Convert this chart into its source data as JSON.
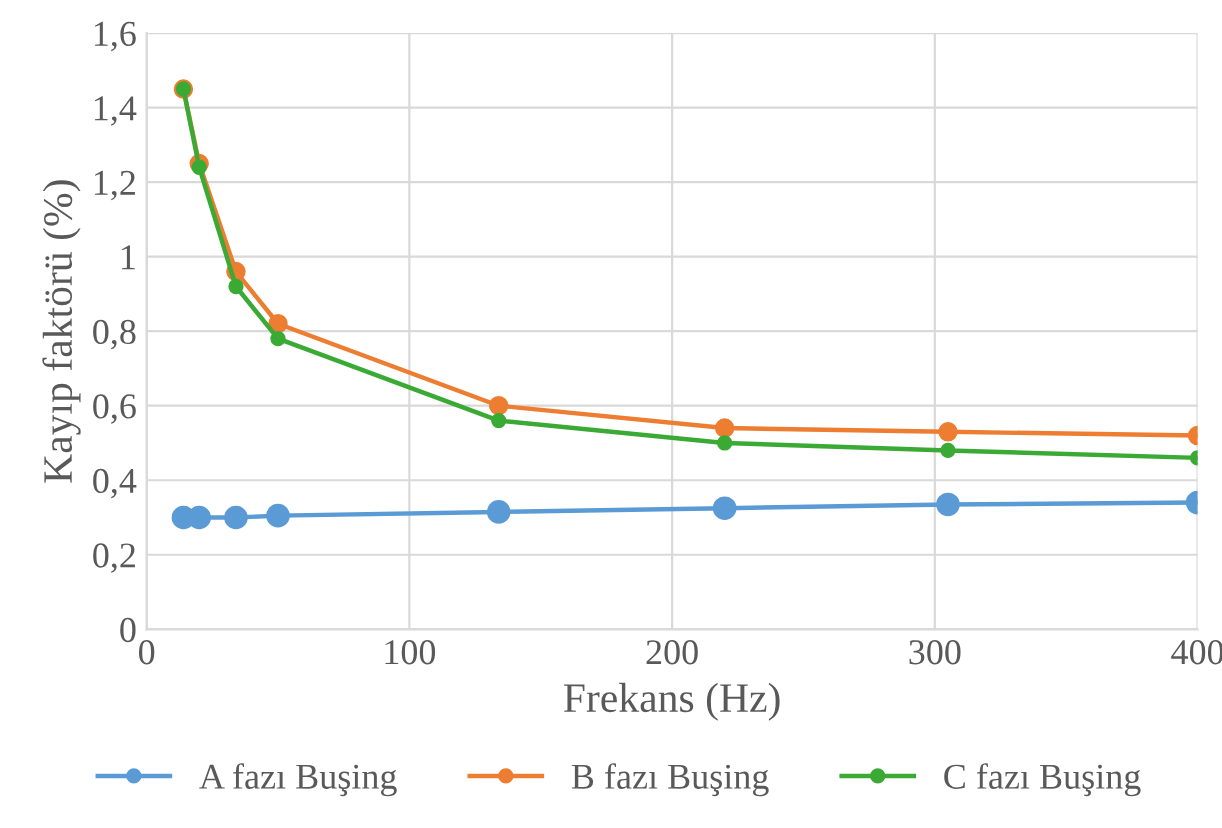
{
  "chart_data": {
    "type": "line",
    "xlabel": "Frekans (Hz)",
    "ylabel": "Kayıp faktörü (%)",
    "x": [
      14,
      20,
      34,
      50,
      134,
      220,
      305,
      400
    ],
    "series": [
      {
        "name": "A fazı Buşing",
        "color": "#5b9bd5",
        "values": [
          0.3,
          0.3,
          0.3,
          0.305,
          0.315,
          0.325,
          0.335,
          0.34
        ]
      },
      {
        "name": "B fazı Buşing",
        "color": "#ed7d31",
        "values": [
          1.45,
          1.25,
          0.96,
          0.82,
          0.6,
          0.54,
          0.53,
          0.52
        ]
      },
      {
        "name": "C fazı Buşing",
        "color": "#3aaa35",
        "values": [
          1.45,
          1.24,
          0.92,
          0.78,
          0.56,
          0.5,
          0.48,
          0.46
        ]
      }
    ],
    "xlim": [
      0,
      400
    ],
    "xticks": [
      0,
      100,
      200,
      300,
      400
    ],
    "ylim": [
      0,
      1.6
    ],
    "yticks": [
      0,
      {
        "value": 0.2,
        "label": "0,2"
      },
      {
        "value": 0.4,
        "label": "0,4"
      },
      {
        "value": 0.6,
        "label": "0,6"
      },
      {
        "value": 0.8,
        "label": "0,8"
      },
      1,
      {
        "value": 1.2,
        "label": "1,2"
      },
      {
        "value": 1.4,
        "label": "1,4"
      },
      {
        "value": 1.6,
        "label": "1,6"
      }
    ],
    "grid": true,
    "legend": "bottom",
    "marker": "circle",
    "line_style": "solid"
  }
}
